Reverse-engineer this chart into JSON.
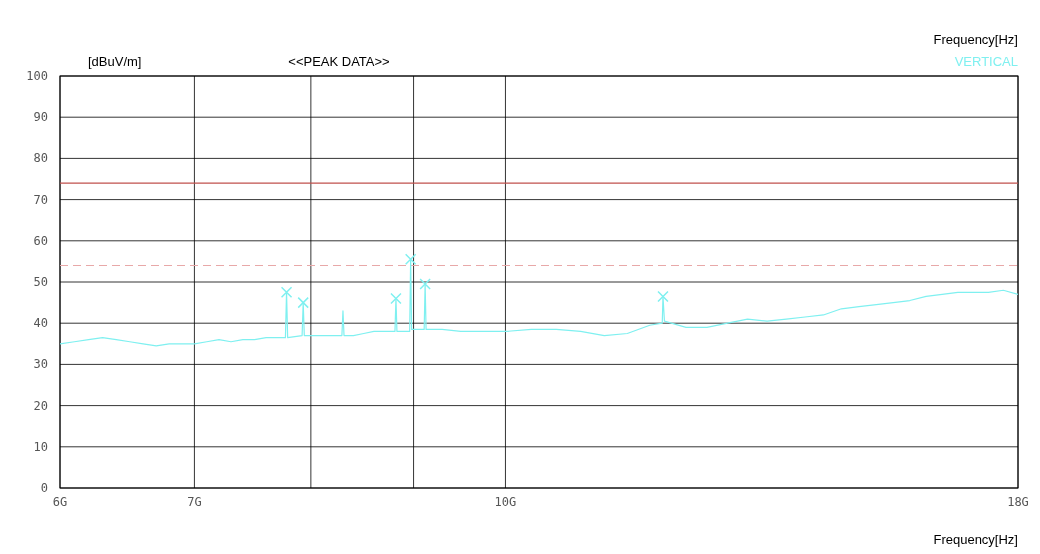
{
  "chart_data": {
    "type": "line",
    "title": "<<PEAK DATA>>",
    "xlabel": "Frequency[Hz]",
    "ylabel": "[dBuV/m]",
    "annotations": [
      "Frequency[Hz]"
    ],
    "log": "x",
    "grid": true,
    "legend": "top right",
    "xlim": [
      6,
      18
    ],
    "xticks": [
      {
        "value": 6,
        "label": "6G"
      },
      {
        "value": 7,
        "label": "7G"
      },
      {
        "value": 8,
        "label": null
      },
      {
        "value": 9,
        "label": null
      },
      {
        "value": 10,
        "label": "10G"
      },
      {
        "value": 18,
        "label": "18G"
      }
    ],
    "ylim": [
      0,
      100
    ],
    "yticks": [
      0,
      10,
      20,
      30,
      40,
      50,
      60,
      70,
      80,
      90,
      100
    ],
    "ref_lines": [
      {
        "axis": "y",
        "value": 74,
        "color": "#c0504d",
        "line_style": "solid"
      },
      {
        "axis": "y",
        "value": 54,
        "color": "#e8a8a8",
        "line_style": "dashed"
      }
    ],
    "series": [
      {
        "name": "VERTICAL",
        "color": "#7ff0f0",
        "x": [
          6.0,
          6.1,
          6.2,
          6.3,
          6.4,
          6.5,
          6.6,
          6.7,
          6.8,
          6.9,
          7.0,
          7.1,
          7.2,
          7.3,
          7.4,
          7.5,
          7.6,
          7.7,
          7.77,
          7.78,
          7.79,
          7.92,
          7.93,
          7.94,
          8.0,
          8.1,
          8.2,
          8.29,
          8.3,
          8.31,
          8.4,
          8.5,
          8.6,
          8.7,
          8.81,
          8.82,
          8.83,
          8.96,
          8.97,
          8.98,
          9.05,
          9.11,
          9.12,
          9.13,
          9.3,
          9.5,
          9.8,
          10.0,
          10.3,
          10.6,
          10.9,
          11.2,
          11.5,
          11.8,
          11.97,
          11.98,
          12.0,
          12.3,
          12.6,
          12.9,
          13.2,
          13.5,
          13.8,
          14.1,
          14.4,
          14.7,
          15.0,
          15.3,
          15.6,
          15.9,
          16.2,
          16.5,
          16.8,
          17.1,
          17.4,
          17.7,
          18.0
        ],
        "values": [
          35,
          35.5,
          36,
          36.5,
          36,
          35.5,
          35,
          34.5,
          35,
          35,
          35,
          35.5,
          36,
          35.5,
          36,
          36,
          36.5,
          36.5,
          36.5,
          47.5,
          36.5,
          37,
          45,
          37,
          37,
          37,
          37,
          37,
          43,
          37,
          37,
          37.5,
          38,
          38,
          38,
          46,
          38,
          38,
          55.5,
          38.5,
          38.5,
          38.5,
          49.5,
          38.5,
          38.5,
          38,
          38,
          38,
          38.5,
          38.5,
          38,
          37,
          37.5,
          39.5,
          40,
          46.5,
          40.5,
          39,
          39,
          40,
          41,
          40.5,
          41,
          41.5,
          42,
          43.5,
          44,
          44.5,
          45,
          45.5,
          46.5,
          47,
          47.5,
          47.5,
          47.5,
          48,
          47
        ]
      },
      {
        "type": "scatter",
        "color": "#7ff0f0",
        "marker": "cross",
        "x": [
          7.78,
          7.93,
          8.82,
          8.97,
          9.12,
          11.98
        ],
        "values": [
          47.5,
          45,
          46,
          55.5,
          49.5,
          46.5
        ]
      }
    ]
  }
}
